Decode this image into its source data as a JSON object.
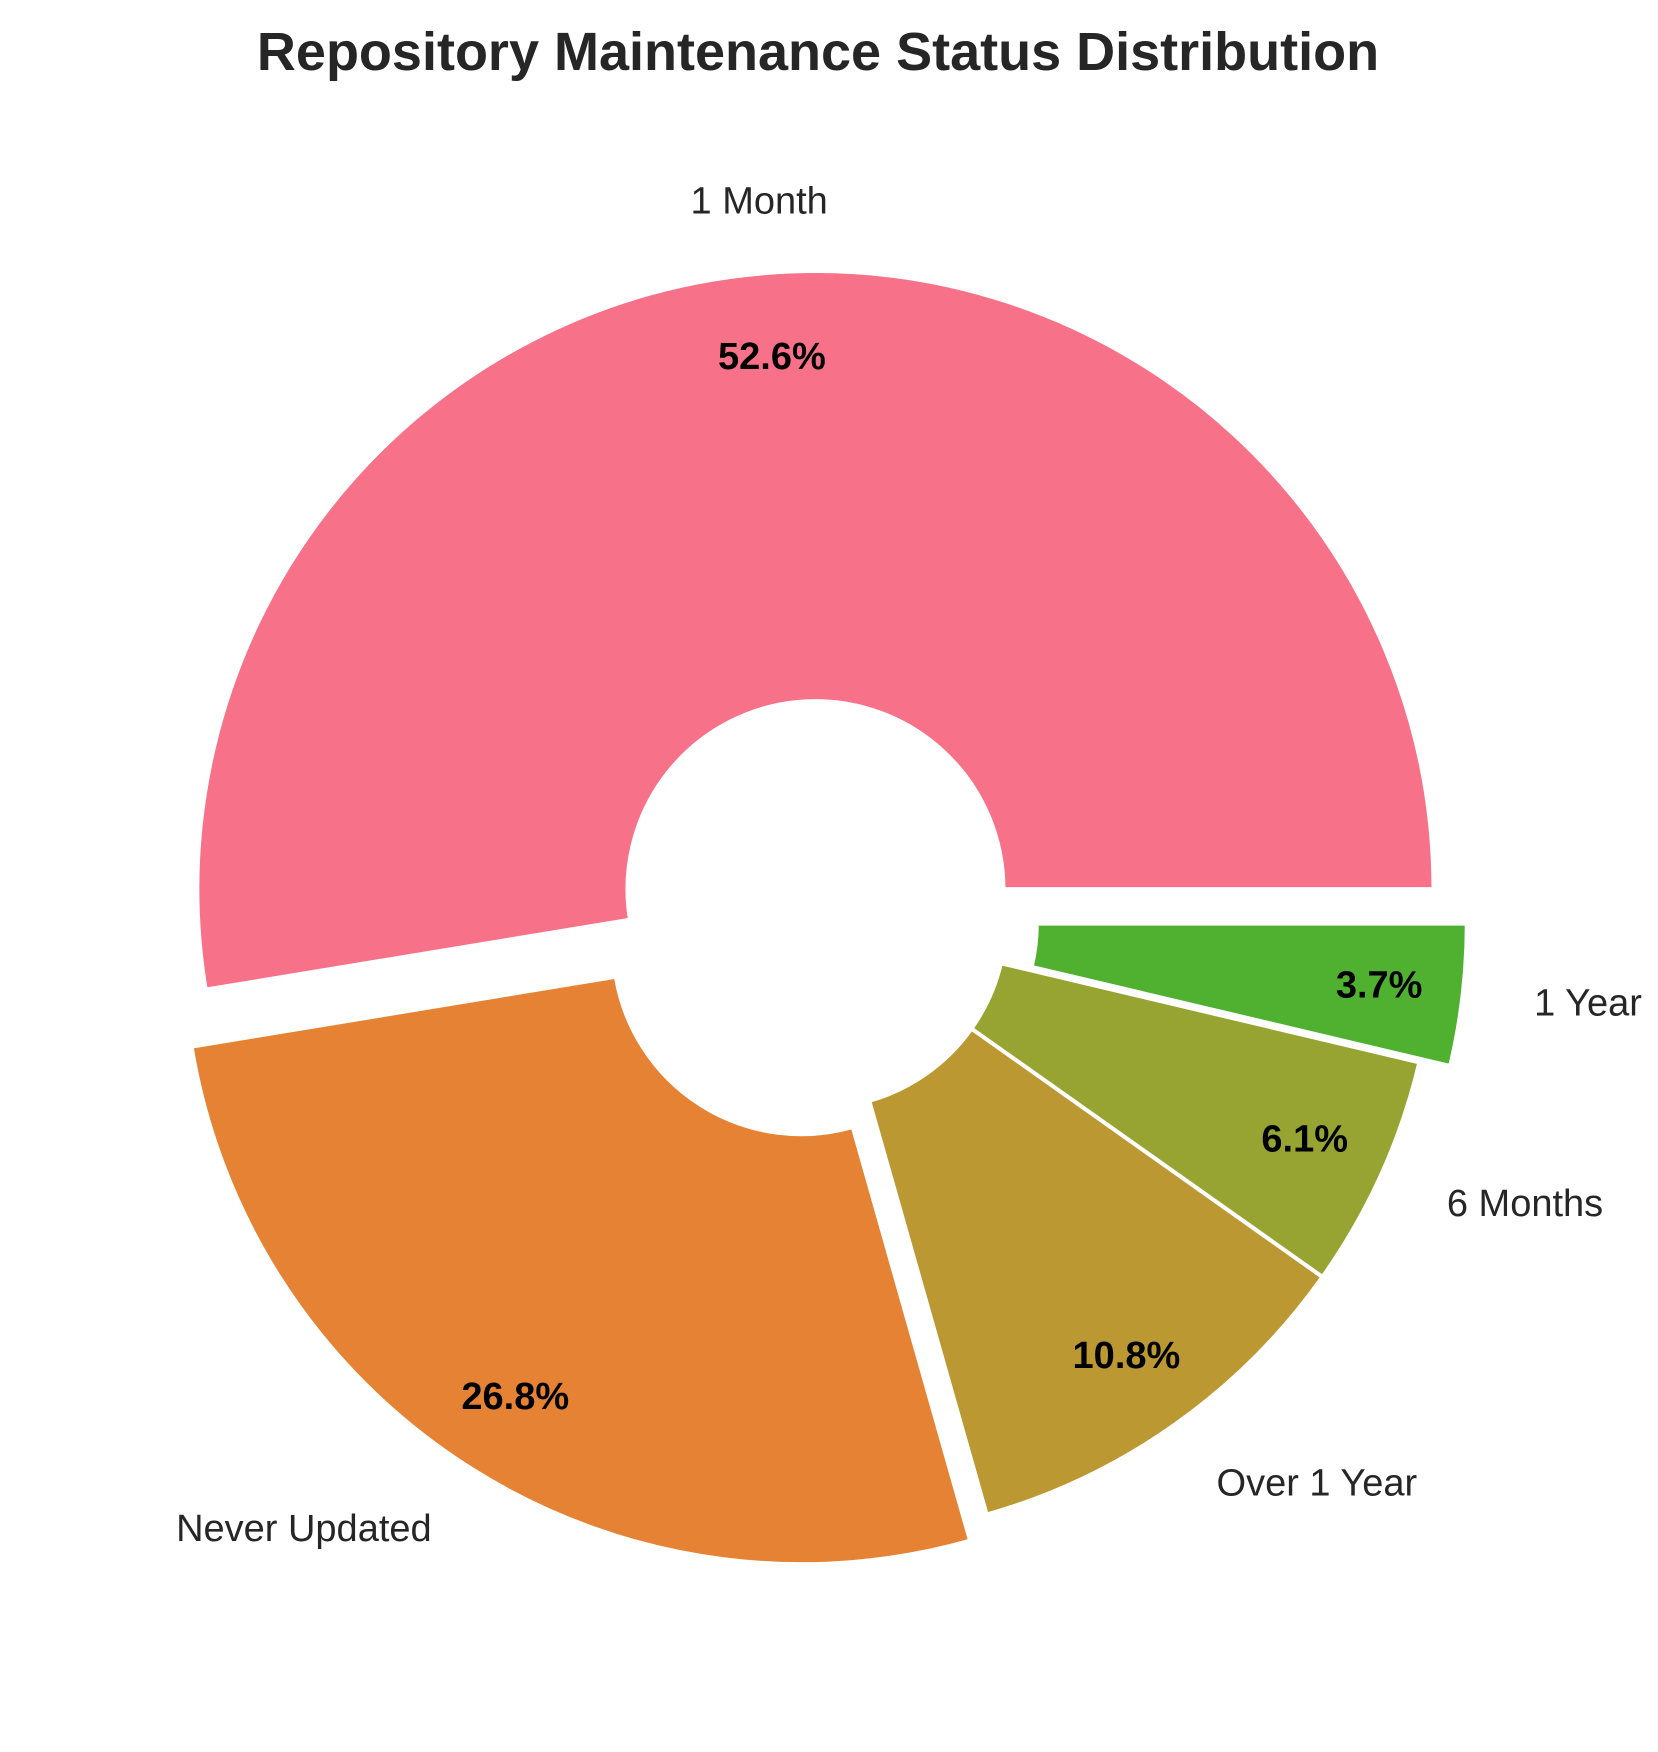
{
  "chart_data": {
    "type": "pie",
    "title": "Repository Maintenance Status Distribution",
    "donut": true,
    "start_angle_deg": 0,
    "direction": "counterclockwise",
    "slices": [
      {
        "label": "1 Month",
        "value": 52.6,
        "pct_label": "52.6%",
        "color": "#f77189",
        "exploded": true
      },
      {
        "label": "Never Updated",
        "value": 26.8,
        "pct_label": "26.8%",
        "color": "#e58233",
        "exploded": true
      },
      {
        "label": "Over 1 Year",
        "value": 10.8,
        "pct_label": "10.8%",
        "color": "#bb9832",
        "exploded": false
      },
      {
        "label": "6 Months",
        "value": 6.1,
        "pct_label": "6.1%",
        "color": "#97a431",
        "exploded": false
      },
      {
        "label": "1 Year",
        "value": 3.7,
        "pct_label": "3.7%",
        "color": "#50b131",
        "exploded": true
      }
    ]
  }
}
